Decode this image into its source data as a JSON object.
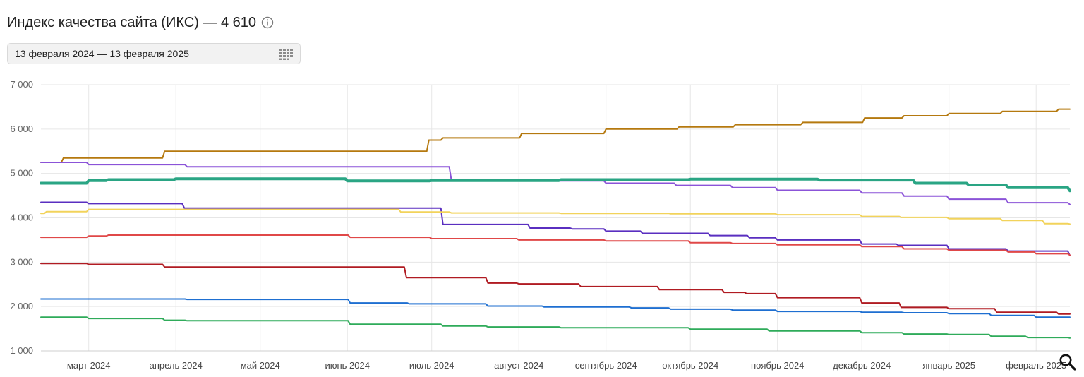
{
  "header": {
    "title": "Индекс качества сайта (ИКС) — 4 610",
    "info_icon": "info-icon"
  },
  "date_range": {
    "label": "13 февраля 2024 — 13 февраля 2025",
    "icon": "calendar-grid-icon"
  },
  "zoom_icon": "search-icon",
  "chart_data": {
    "type": "line",
    "x_range": [
      "2024-02-13",
      "2025-02-13"
    ],
    "ylim": [
      1000,
      7000
    ],
    "y_ticks": [
      1000,
      2000,
      3000,
      4000,
      5000,
      6000,
      7000
    ],
    "y_tick_labels": [
      "1 000",
      "2 000",
      "3 000",
      "4 000",
      "5 000",
      "6 000",
      "7 000"
    ],
    "x_ticks": [
      {
        "date": "2024-03-01",
        "label": "март 2024"
      },
      {
        "date": "2024-04-01",
        "label": "апрель 2024"
      },
      {
        "date": "2024-05-01",
        "label": "май 2024"
      },
      {
        "date": "2024-06-01",
        "label": "июнь 2024"
      },
      {
        "date": "2024-07-01",
        "label": "июль 2024"
      },
      {
        "date": "2024-08-01",
        "label": "август 2024"
      },
      {
        "date": "2024-09-01",
        "label": "сентябрь 2024"
      },
      {
        "date": "2024-10-01",
        "label": "октябрь 2024"
      },
      {
        "date": "2024-11-01",
        "label": "ноябрь 2024"
      },
      {
        "date": "2024-12-01",
        "label": "декабрь 2024"
      },
      {
        "date": "2025-01-01",
        "label": "январь 2025"
      },
      {
        "date": "2025-02-01",
        "label": "февраль 2025"
      }
    ],
    "grid": true,
    "series": [
      {
        "color": "#b5790f",
        "width": 2,
        "points": [
          [
            "2024-02-13",
            5250
          ],
          [
            "2024-02-21",
            5350
          ],
          [
            "2024-03-28",
            5500
          ],
          [
            "2024-06-30",
            5750
          ],
          [
            "2024-07-05",
            5800
          ],
          [
            "2024-08-02",
            5900
          ],
          [
            "2024-09-01",
            6000
          ],
          [
            "2024-09-27",
            6050
          ],
          [
            "2024-10-17",
            6100
          ],
          [
            "2024-11-10",
            6150
          ],
          [
            "2024-12-02",
            6250
          ],
          [
            "2024-12-16",
            6300
          ],
          [
            "2025-01-01",
            6350
          ],
          [
            "2025-01-20",
            6400
          ],
          [
            "2025-02-09",
            6450
          ],
          [
            "2025-02-13",
            6450
          ]
        ]
      },
      {
        "color": "#8b53d8",
        "width": 2,
        "points": [
          [
            "2024-02-13",
            5250
          ],
          [
            "2024-03-01",
            5200
          ],
          [
            "2024-04-05",
            5150
          ],
          [
            "2024-07-08",
            4850
          ],
          [
            "2024-08-01",
            4830
          ],
          [
            "2024-09-01",
            4780
          ],
          [
            "2024-09-26",
            4730
          ],
          [
            "2024-10-16",
            4680
          ],
          [
            "2024-11-01",
            4620
          ],
          [
            "2024-12-01",
            4560
          ],
          [
            "2024-12-16",
            4490
          ],
          [
            "2025-01-01",
            4420
          ],
          [
            "2025-01-22",
            4340
          ],
          [
            "2025-02-13",
            4300
          ]
        ]
      },
      {
        "color": "#2aa584",
        "width": 4,
        "points": [
          [
            "2024-02-13",
            4780
          ],
          [
            "2024-03-01",
            4840
          ],
          [
            "2024-03-08",
            4860
          ],
          [
            "2024-04-01",
            4880
          ],
          [
            "2024-06-01",
            4830
          ],
          [
            "2024-07-01",
            4840
          ],
          [
            "2024-08-16",
            4860
          ],
          [
            "2024-10-01",
            4870
          ],
          [
            "2024-11-16",
            4850
          ],
          [
            "2024-12-20",
            4780
          ],
          [
            "2025-01-08",
            4740
          ],
          [
            "2025-01-22",
            4680
          ],
          [
            "2025-02-13",
            4610
          ]
        ]
      },
      {
        "color": "#5a2fc0",
        "width": 2,
        "points": [
          [
            "2024-02-13",
            4350
          ],
          [
            "2024-03-01",
            4320
          ],
          [
            "2024-04-04",
            4220
          ],
          [
            "2024-07-05",
            3850
          ],
          [
            "2024-08-05",
            3770
          ],
          [
            "2024-08-20",
            3750
          ],
          [
            "2024-09-01",
            3700
          ],
          [
            "2024-09-14",
            3650
          ],
          [
            "2024-10-08",
            3600
          ],
          [
            "2024-10-22",
            3550
          ],
          [
            "2024-11-01",
            3500
          ],
          [
            "2024-12-01",
            3410
          ],
          [
            "2024-12-14",
            3380
          ],
          [
            "2025-01-01",
            3300
          ],
          [
            "2025-01-22",
            3250
          ],
          [
            "2025-02-13",
            3150
          ]
        ]
      },
      {
        "color": "#f2d35b",
        "width": 2,
        "points": [
          [
            "2024-02-13",
            4100
          ],
          [
            "2024-02-15",
            4140
          ],
          [
            "2024-03-01",
            4190
          ],
          [
            "2024-06-20",
            4130
          ],
          [
            "2024-07-08",
            4110
          ],
          [
            "2024-08-16",
            4100
          ],
          [
            "2024-09-24",
            4090
          ],
          [
            "2024-11-01",
            4070
          ],
          [
            "2024-12-01",
            4030
          ],
          [
            "2024-12-15",
            4010
          ],
          [
            "2025-01-01",
            3980
          ],
          [
            "2025-01-20",
            3940
          ],
          [
            "2025-02-04",
            3870
          ],
          [
            "2025-02-13",
            3860
          ]
        ]
      },
      {
        "color": "#e04848",
        "width": 2,
        "points": [
          [
            "2024-02-13",
            3560
          ],
          [
            "2024-03-01",
            3590
          ],
          [
            "2024-03-08",
            3610
          ],
          [
            "2024-06-02",
            3560
          ],
          [
            "2024-07-01",
            3530
          ],
          [
            "2024-08-01",
            3500
          ],
          [
            "2024-09-01",
            3480
          ],
          [
            "2024-10-01",
            3440
          ],
          [
            "2024-10-16",
            3420
          ],
          [
            "2024-11-01",
            3390
          ],
          [
            "2024-12-01",
            3350
          ],
          [
            "2024-12-16",
            3300
          ],
          [
            "2025-01-01",
            3270
          ],
          [
            "2025-01-22",
            3230
          ],
          [
            "2025-02-01",
            3190
          ],
          [
            "2025-02-13",
            3160
          ]
        ]
      },
      {
        "color": "#b01b22",
        "width": 2,
        "points": [
          [
            "2024-02-13",
            2970
          ],
          [
            "2024-03-01",
            2950
          ],
          [
            "2024-03-28",
            2890
          ],
          [
            "2024-06-22",
            2650
          ],
          [
            "2024-07-21",
            2530
          ],
          [
            "2024-08-01",
            2510
          ],
          [
            "2024-08-23",
            2450
          ],
          [
            "2024-09-20",
            2380
          ],
          [
            "2024-10-13",
            2320
          ],
          [
            "2024-10-21",
            2290
          ],
          [
            "2024-11-01",
            2200
          ],
          [
            "2024-12-01",
            2080
          ],
          [
            "2024-12-15",
            1980
          ],
          [
            "2025-01-01",
            1950
          ],
          [
            "2025-01-18",
            1870
          ],
          [
            "2025-02-09",
            1830
          ],
          [
            "2025-02-13",
            1830
          ]
        ]
      },
      {
        "color": "#1e6fd1",
        "width": 2,
        "points": [
          [
            "2024-02-13",
            2170
          ],
          [
            "2024-04-05",
            2160
          ],
          [
            "2024-06-02",
            2080
          ],
          [
            "2024-06-23",
            2060
          ],
          [
            "2024-07-21",
            2010
          ],
          [
            "2024-08-10",
            1990
          ],
          [
            "2024-09-10",
            1970
          ],
          [
            "2024-09-24",
            1940
          ],
          [
            "2024-10-16",
            1920
          ],
          [
            "2024-11-01",
            1890
          ],
          [
            "2024-12-01",
            1870
          ],
          [
            "2024-12-16",
            1860
          ],
          [
            "2025-01-01",
            1840
          ],
          [
            "2025-01-16",
            1800
          ],
          [
            "2025-02-01",
            1760
          ],
          [
            "2025-02-13",
            1760
          ]
        ]
      },
      {
        "color": "#2fab5a",
        "width": 2,
        "points": [
          [
            "2024-02-13",
            1760
          ],
          [
            "2024-03-01",
            1730
          ],
          [
            "2024-03-28",
            1690
          ],
          [
            "2024-04-05",
            1680
          ],
          [
            "2024-06-02",
            1600
          ],
          [
            "2024-07-05",
            1560
          ],
          [
            "2024-07-21",
            1540
          ],
          [
            "2024-08-16",
            1520
          ],
          [
            "2024-10-01",
            1490
          ],
          [
            "2024-10-29",
            1450
          ],
          [
            "2024-12-01",
            1410
          ],
          [
            "2024-12-16",
            1380
          ],
          [
            "2025-01-01",
            1370
          ],
          [
            "2025-01-16",
            1330
          ],
          [
            "2025-01-29",
            1300
          ],
          [
            "2025-02-13",
            1290
          ]
        ]
      }
    ]
  }
}
